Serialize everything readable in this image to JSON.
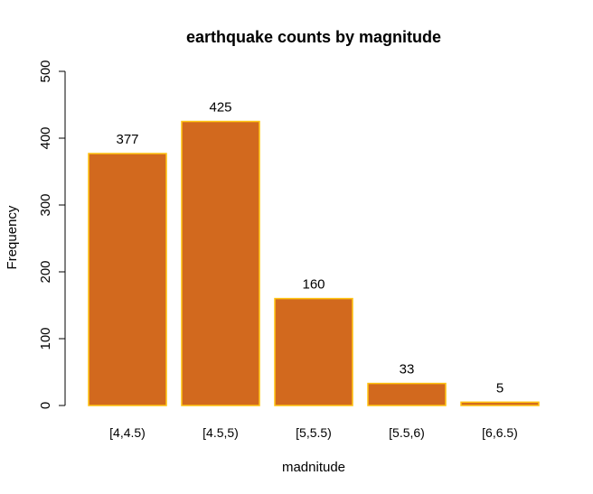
{
  "chart_data": {
    "type": "bar",
    "title": "earthquake counts by magnitude",
    "xlabel": "madnitude",
    "ylabel": "Frequency",
    "categories": [
      "[4,4.5)",
      "[4.5,5)",
      "[5,5.5)",
      "[5.5,6)",
      "[6,6.5)"
    ],
    "values": [
      377,
      425,
      160,
      33,
      5
    ],
    "data_labels": [
      "377",
      "425",
      "160",
      "33",
      "5"
    ],
    "ylim": [
      0,
      500
    ],
    "yticks": [
      0,
      100,
      200,
      300,
      400,
      500
    ],
    "ytick_labels": [
      "0",
      "100",
      "200",
      "300",
      "400",
      "500"
    ],
    "bar_fill_color": "#d2691e",
    "bar_border_color": "#ffc20e",
    "grid": false,
    "legend": "none"
  }
}
